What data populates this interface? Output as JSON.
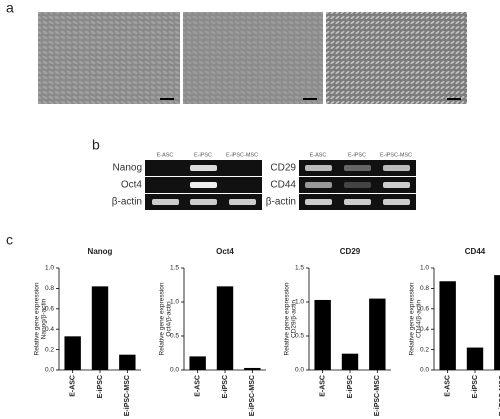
{
  "panel_labels": [
    "a",
    "b",
    "c"
  ],
  "gels": [
    {
      "lanes": [
        "E-ASC",
        "E-iPSC",
        "E-iPSC-MSC"
      ],
      "rows": [
        "Nanog",
        "Oct4",
        "β-actin"
      ]
    },
    {
      "lanes": [
        "E-ASC",
        "E-iPSC",
        "E-iPSC-MSC"
      ],
      "rows": [
        "CD29",
        "CD44",
        "β-actin"
      ]
    }
  ],
  "chart_data": [
    {
      "type": "bar",
      "title": "Nanog",
      "ylabel": [
        "Relative gene expression",
        "Nanog/β-actin"
      ],
      "categories": [
        "E-ASC",
        "E-iPSC",
        "E-iPSC-MSC"
      ],
      "values": [
        0.33,
        0.82,
        0.15
      ],
      "color": "#000000",
      "ylim": [
        0,
        1.0
      ],
      "yticks": [
        {
          "value": 0,
          "label": "0.0"
        },
        0.2,
        0.4,
        0.6,
        0.8,
        {
          "value": 1,
          "label": "1.0"
        }
      ]
    },
    {
      "type": "bar",
      "title": "Oct4",
      "ylabel": [
        "Relative gene expression",
        "Oct4/β-actin"
      ],
      "categories": [
        "E-ASC",
        "E-iPSC",
        "E-iPSC-MSC"
      ],
      "values": [
        0.2,
        1.23,
        0.03
      ],
      "color": "#000000",
      "ylim": [
        0,
        1.5
      ],
      "yticks": [
        {
          "value": 0,
          "label": "0.0"
        },
        0.5,
        {
          "value": 1,
          "label": "1.0"
        },
        1.5
      ]
    },
    {
      "type": "bar",
      "title": "CD29",
      "ylabel": [
        "Relative gene expression",
        "CD29/β-actin"
      ],
      "categories": [
        "E-ASC",
        "E-iPSC",
        "E-iPSC-MSC"
      ],
      "values": [
        1.03,
        0.24,
        1.05
      ],
      "color": "#000000",
      "ylim": [
        0,
        1.5
      ],
      "yticks": [
        {
          "value": 0,
          "label": "0.0"
        },
        0.5,
        {
          "value": 1,
          "label": "1.0"
        },
        1.5
      ]
    },
    {
      "type": "bar",
      "title": "CD44",
      "ylabel": [
        "Relative gene expression",
        "CD44/β-actin"
      ],
      "categories": [
        "E-ASC",
        "E-iPSC",
        "E-iPSC-MSC"
      ],
      "values": [
        0.87,
        0.22,
        0.93
      ],
      "color": "#000000",
      "ylim": [
        0,
        1.0
      ],
      "yticks": [
        {
          "value": 0,
          "label": "0.0"
        },
        0.2,
        0.4,
        0.6,
        0.8,
        {
          "value": 1,
          "label": "1.0"
        }
      ]
    }
  ]
}
